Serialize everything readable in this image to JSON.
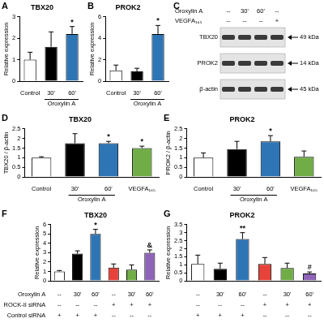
{
  "chart_data": [
    {
      "panel": "A",
      "type": "bar",
      "title": "TBX20",
      "y_label": "Relative expression",
      "categories": [
        "Control",
        "30'",
        "60'"
      ],
      "group": {
        "label": "Oroxylin A",
        "members": [
          "30'",
          "60'"
        ]
      },
      "values": [
        1.0,
        1.6,
        2.2
      ],
      "errors": [
        0.35,
        0.7,
        0.35
      ],
      "significance": [
        null,
        null,
        "*"
      ],
      "colors": [
        "#ffffff",
        "#000000",
        "#2e75b6"
      ],
      "ylim": [
        0,
        3
      ],
      "yticks": [
        0,
        1,
        2,
        3
      ],
      "grid": false
    },
    {
      "panel": "B",
      "type": "bar",
      "title": "PROK2",
      "y_label": "Relative expression",
      "categories": [
        "Control",
        "30'",
        "60'"
      ],
      "group": {
        "label": "Oroxylin A",
        "members": [
          "30'",
          "60'"
        ]
      },
      "values": [
        1.0,
        0.9,
        4.4
      ],
      "errors": [
        0.5,
        0.3,
        0.8
      ],
      "significance": [
        null,
        null,
        "*"
      ],
      "colors": [
        "#ffffff",
        "#000000",
        "#2e75b6"
      ],
      "ylim": [
        0,
        6
      ],
      "yticks": [
        0,
        2,
        4,
        6
      ],
      "grid": false
    },
    {
      "panel": "D",
      "type": "bar",
      "title": "TBX20",
      "y_label": "TBX20 / β-actin",
      "categories": [
        "Control",
        "30'",
        "60'",
        "VEGFA₁₆₅"
      ],
      "group": {
        "label": "Oroxylin A",
        "members": [
          "30'",
          "60'"
        ]
      },
      "values": [
        1.0,
        1.75,
        1.75,
        1.5
      ],
      "errors": [
        0.05,
        0.5,
        0.1,
        0.1
      ],
      "significance": [
        null,
        null,
        "*",
        "*"
      ],
      "colors": [
        "#ffffff",
        "#000000",
        "#2e75b6",
        "#70ad47"
      ],
      "ylim": [
        0,
        2.5
      ],
      "yticks": [
        0,
        0.5,
        1,
        1.5,
        2,
        2.5
      ],
      "grid": false
    },
    {
      "panel": "E",
      "type": "bar",
      "title": "PROK2",
      "y_label": "PROK2 / β-actin",
      "categories": [
        "Control",
        "30'",
        "60'",
        "VEGFA₁₆₅"
      ],
      "group": {
        "label": "Oroxylin A",
        "members": [
          "30'",
          "60'"
        ]
      },
      "values": [
        1.0,
        1.45,
        1.85,
        1.05
      ],
      "errors": [
        0.25,
        0.4,
        0.3,
        0.3
      ],
      "significance": [
        null,
        null,
        "*",
        null
      ],
      "colors": [
        "#ffffff",
        "#000000",
        "#2e75b6",
        "#70ad47"
      ],
      "ylim": [
        0,
        2.5
      ],
      "yticks": [
        0,
        0.5,
        1,
        1.5,
        2,
        2.5
      ],
      "grid": false
    },
    {
      "panel": "F",
      "type": "bar",
      "title": "TBX20",
      "y_label": "Relative expression",
      "categories": [
        null,
        null,
        null,
        null,
        null,
        null
      ],
      "tick_labels": "y",
      "values": [
        1.0,
        2.9,
        5.0,
        1.4,
        1.2,
        3.0
      ],
      "errors": [
        0.1,
        0.3,
        0.5,
        0.4,
        0.5,
        0.3
      ],
      "significance": [
        null,
        null,
        "*",
        null,
        null,
        "&"
      ],
      "colors": [
        "#ffffff",
        "#000000",
        "#2e75b6",
        "#e8433a",
        "#70ad47",
        "#8e63b8"
      ],
      "ylim": [
        0,
        6
      ],
      "yticks": [
        0,
        1,
        2,
        3,
        4,
        5,
        6
      ],
      "grid": false
    },
    {
      "panel": "G",
      "type": "bar",
      "title": "PROK2",
      "y_label": "Relative expression",
      "categories": [
        null,
        null,
        null,
        null,
        null,
        null
      ],
      "tick_labels": "y",
      "values": [
        1.05,
        0.75,
        2.6,
        1.05,
        0.8,
        0.45
      ],
      "errors": [
        0.55,
        0.35,
        0.4,
        0.4,
        0.3,
        0.1
      ],
      "significance": [
        null,
        null,
        "**",
        null,
        null,
        "#"
      ],
      "colors": [
        "#ffffff",
        "#000000",
        "#2e75b6",
        "#e8433a",
        "#70ad47",
        "#8e63b8"
      ],
      "ylim": [
        0,
        3.5
      ],
      "yticks": [
        0,
        0.5,
        1,
        1.5,
        2,
        2.5,
        3,
        3.5
      ],
      "grid": false
    }
  ],
  "blot": {
    "panel": "C",
    "header_rows": [
      {
        "label": "Oroxylin A",
        "cells": [
          "--",
          "30'",
          "60'",
          "--"
        ]
      },
      {
        "label": "VEGFA₁₆₅",
        "cells": [
          "--",
          "--",
          "--",
          "+"
        ]
      }
    ],
    "bands": [
      {
        "label": "TBX20",
        "size": "49 kDa"
      },
      {
        "label": "PROK2",
        "size": "14 kDa"
      },
      {
        "label": "β-actin",
        "size": "45 kDa"
      }
    ]
  },
  "treatment_table": {
    "panels": [
      "F",
      "G"
    ],
    "rows": [
      {
        "label": "Oroxylin A",
        "cells": [
          "--",
          "30'",
          "60'",
          "--",
          "30'",
          "60'"
        ]
      },
      {
        "label": "ROCK-II siRNA",
        "cells": [
          "--",
          "--",
          "--",
          "+",
          "+",
          "+"
        ]
      },
      {
        "label": "Control siRNA",
        "cells": [
          "+",
          "+",
          "+",
          "--",
          "--",
          "--"
        ]
      }
    ]
  }
}
